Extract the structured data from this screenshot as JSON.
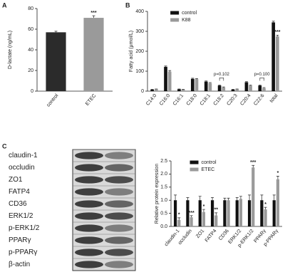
{
  "panel_labels": [
    "A",
    "B",
    "C"
  ],
  "chart_data": [
    {
      "type": "bar",
      "ylabel": "D-lactate (ng/mL)",
      "categories": [
        "control",
        "ETEC"
      ],
      "values": [
        57,
        71
      ],
      "errors": [
        1,
        2
      ],
      "colors": [
        "#2b2b2b",
        "#9a9a9a"
      ],
      "significance": [
        null,
        "***"
      ],
      "ylim": [
        0,
        80
      ],
      "yticks": [
        0,
        20,
        40,
        60,
        80
      ]
    },
    {
      "type": "bar",
      "ylabel": "Fatty acid (μmol/L)",
      "categories": [
        "C14:0",
        "C16:0",
        "C16:1",
        "C18:0",
        "C18:1",
        "C18:2",
        "C20:3",
        "C20:4",
        "C22:6",
        "total"
      ],
      "series": [
        {
          "name": "control",
          "color": "#111111",
          "values": [
            8,
            122,
            10,
            62,
            48,
            28,
            8,
            45,
            28,
            345
          ],
          "errors": [
            1,
            4,
            1,
            3,
            3,
            3,
            1,
            3,
            3,
            6
          ]
        },
        {
          "name": "K88",
          "color": "#9a9a9a",
          "values": [
            10,
            98,
            8,
            60,
            40,
            18,
            10,
            28,
            15,
            275
          ],
          "errors": [
            1,
            5,
            1,
            3,
            3,
            3,
            1,
            3,
            3,
            6
          ],
          "significance": [
            null,
            null,
            null,
            null,
            null,
            null,
            null,
            null,
            null,
            "***"
          ]
        }
      ],
      "brackets": [
        {
          "text": "p=0.102",
          "category": "C18:2"
        },
        {
          "text": "p=0.100",
          "category": "C22:6"
        }
      ],
      "ylim": [
        0,
        400
      ],
      "yticks": [
        0,
        100,
        200,
        300,
        400
      ],
      "legend": "upper left"
    },
    {
      "type": "bar",
      "ylabel": "Relative protein expression",
      "categories": [
        "claudin-1",
        "occludin",
        "ZO1",
        "FATP4",
        "CD36",
        "ERK1/2",
        "p-ERK1/2",
        "PPARγ",
        "p-PPARγ"
      ],
      "series": [
        {
          "name": "control",
          "color": "#111111",
          "values": [
            1,
            1,
            1,
            1,
            1,
            1,
            1,
            1,
            1
          ],
          "errors": [
            0.2,
            0.1,
            0.15,
            0.1,
            0.08,
            0.1,
            0.2,
            0.2,
            0.2
          ]
        },
        {
          "name": "ETEC",
          "color": "#9a9a9a",
          "values": [
            0.25,
            0.35,
            0.55,
            0.42,
            1,
            1.05,
            2.25,
            0.65,
            1.8
          ],
          "errors": [
            0.08,
            0.06,
            0.1,
            0.1,
            0.08,
            0.1,
            0.08,
            0.08,
            0.12
          ],
          "significance": [
            "*",
            "***",
            "*",
            "**",
            null,
            null,
            "***",
            "*",
            "*"
          ]
        }
      ],
      "ylim": [
        0,
        2.5
      ],
      "yticks": [
        {
          "value": 0,
          "label": "0.0"
        },
        0.5,
        {
          "value": 1,
          "label": "1.0"
        },
        1.5,
        {
          "value": 2,
          "label": "2.0"
        },
        2.5
      ],
      "legend": "upper left"
    }
  ],
  "blot": {
    "labels": [
      "claudin-1",
      "occludin",
      "ZO1",
      "FATP4",
      "CD36",
      "ERK1/2",
      "p-ERK1/2",
      "PPARγ",
      "p-PPARγ",
      "β-actin"
    ]
  }
}
